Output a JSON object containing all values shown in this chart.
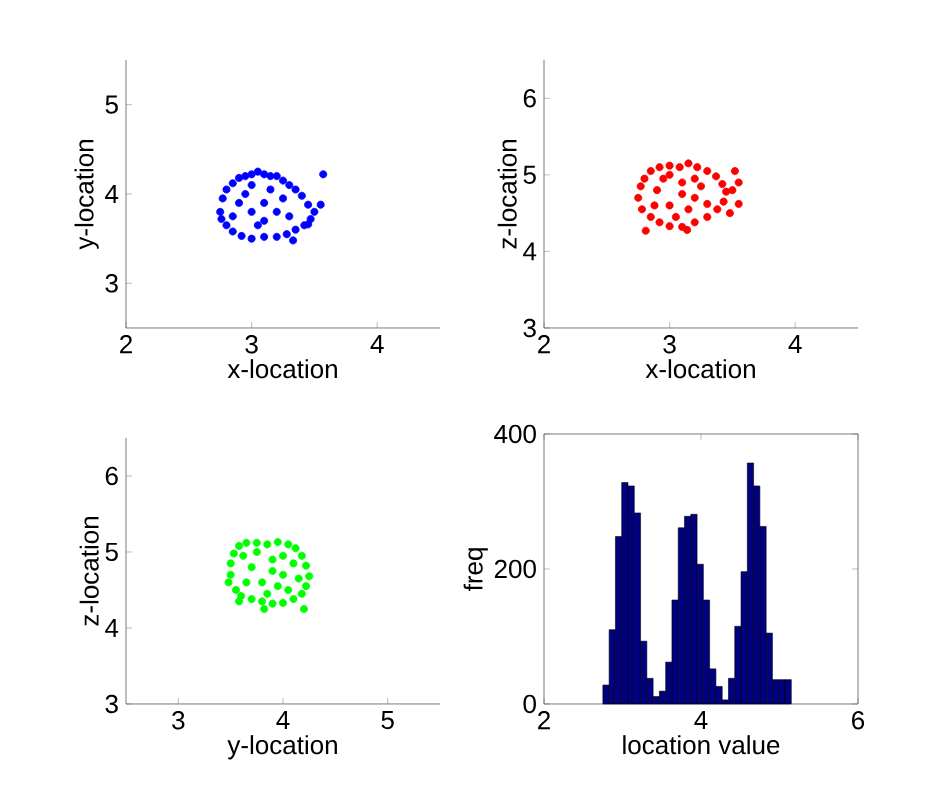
{
  "chart_data": [
    {
      "type": "scatter",
      "xlabel": "x-location",
      "ylabel": "y-location",
      "xlim": [
        2,
        4.5
      ],
      "ylim": [
        2.5,
        5.5
      ],
      "xticks": [
        2,
        3,
        4
      ],
      "yticks": [
        3,
        4,
        5
      ],
      "series": [
        {
          "color": "#0000ff",
          "x": [
            2.75,
            2.77,
            2.8,
            2.85,
            2.9,
            2.95,
            3.0,
            3.05,
            3.1,
            3.15,
            3.2,
            3.25,
            3.3,
            3.35,
            3.4,
            3.45,
            3.5,
            3.47,
            3.42,
            3.35,
            3.28,
            3.2,
            3.1,
            3.0,
            2.92,
            2.85,
            2.8,
            2.76,
            3.57,
            3.55,
            3.45,
            3.33,
            2.9,
            3.0,
            3.1,
            3.2,
            3.05,
            3.15,
            2.95,
            3.25,
            3.3,
            2.85,
            3.1,
            3.0
          ],
          "values": [
            3.8,
            3.95,
            4.05,
            4.12,
            4.18,
            4.2,
            4.22,
            4.25,
            4.22,
            4.2,
            4.2,
            4.15,
            4.1,
            4.05,
            3.98,
            3.88,
            3.8,
            3.72,
            3.65,
            3.6,
            3.55,
            3.52,
            3.52,
            3.5,
            3.53,
            3.58,
            3.65,
            3.72,
            4.22,
            3.88,
            3.66,
            3.48,
            3.9,
            3.8,
            3.9,
            3.8,
            3.65,
            4.05,
            4.0,
            3.95,
            3.75,
            3.75,
            3.7,
            4.1
          ]
        }
      ]
    },
    {
      "type": "scatter",
      "xlabel": "x-location",
      "ylabel": "z-location",
      "xlim": [
        2,
        4.5
      ],
      "ylim": [
        3,
        6.5
      ],
      "xticks": [
        2,
        3,
        4
      ],
      "yticks": [
        3,
        4,
        5,
        6
      ],
      "series": [
        {
          "color": "#ff0000",
          "x": [
            2.75,
            2.77,
            2.8,
            2.85,
            2.92,
            3.0,
            3.08,
            3.15,
            3.22,
            3.3,
            3.37,
            3.42,
            3.45,
            3.43,
            3.38,
            3.3,
            3.2,
            3.1,
            3.0,
            2.92,
            2.85,
            2.78,
            2.81,
            3.14,
            3.55,
            3.55,
            3.52,
            3.48,
            3.5,
            2.9,
            3.0,
            3.1,
            3.2,
            3.05,
            3.15,
            2.95,
            3.25,
            3.3,
            2.88,
            3.1,
            3.0,
            3.2
          ],
          "values": [
            4.7,
            4.85,
            4.95,
            5.05,
            5.1,
            5.12,
            5.1,
            5.15,
            5.1,
            5.05,
            4.98,
            4.88,
            4.78,
            4.65,
            4.55,
            4.45,
            4.38,
            4.32,
            4.33,
            4.38,
            4.45,
            4.55,
            4.27,
            4.28,
            4.9,
            4.62,
            5.05,
            4.5,
            4.8,
            4.8,
            4.6,
            4.9,
            4.7,
            4.45,
            4.55,
            4.95,
            4.85,
            4.62,
            4.6,
            4.75,
            5.0,
            4.95
          ]
        }
      ]
    },
    {
      "type": "scatter",
      "xlabel": "y-location",
      "ylabel": "z-location",
      "xlim": [
        2.5,
        5.5
      ],
      "ylim": [
        3,
        6.5
      ],
      "xticks": [
        3,
        4,
        5
      ],
      "yticks": [
        3,
        4,
        5,
        6
      ],
      "series": [
        {
          "color": "#00ff00",
          "x": [
            3.5,
            3.5,
            3.53,
            3.58,
            3.65,
            3.75,
            3.85,
            3.95,
            4.05,
            4.12,
            4.18,
            4.22,
            4.25,
            4.22,
            4.18,
            4.1,
            4.0,
            3.9,
            3.8,
            3.7,
            3.6,
            3.55,
            3.48,
            3.58,
            3.82,
            4.2,
            3.7,
            3.8,
            3.9,
            4.0,
            3.85,
            4.05,
            3.65,
            4.1,
            3.75,
            3.95,
            4.15,
            3.62,
            3.9,
            4.0
          ],
          "values": [
            4.7,
            4.85,
            4.98,
            5.08,
            5.12,
            5.12,
            5.1,
            5.13,
            5.1,
            5.05,
            4.95,
            4.82,
            4.68,
            4.55,
            4.45,
            4.38,
            4.33,
            4.32,
            4.35,
            4.38,
            4.42,
            4.5,
            4.6,
            4.35,
            4.25,
            4.25,
            4.8,
            4.6,
            4.9,
            4.7,
            4.45,
            4.5,
            4.6,
            4.85,
            5.0,
            4.55,
            4.65,
            4.95,
            4.75,
            4.95
          ]
        }
      ]
    },
    {
      "type": "histogram",
      "xlabel": "location value",
      "ylabel": "freq",
      "xlim": [
        2,
        6
      ],
      "ylim": [
        0,
        400
      ],
      "xticks": [
        2,
        4,
        6
      ],
      "yticks": [
        0,
        200,
        400
      ],
      "color": "#000080",
      "bins": [
        2.75,
        2.83,
        2.91,
        2.99,
        3.07,
        3.15,
        3.23,
        3.31,
        3.39,
        3.47,
        3.55,
        3.63,
        3.71,
        3.79,
        3.87,
        3.95,
        4.03,
        4.11,
        4.19,
        4.27,
        4.35,
        4.43,
        4.51,
        4.59,
        4.67,
        4.75,
        4.83,
        4.91,
        4.99,
        5.07,
        5.15
      ],
      "values": [
        28,
        110,
        248,
        328,
        323,
        283,
        93,
        38,
        11,
        19,
        62,
        154,
        261,
        278,
        281,
        207,
        154,
        52,
        26,
        6,
        38,
        115,
        196,
        357,
        323,
        263,
        105,
        36,
        36,
        36
      ]
    }
  ]
}
